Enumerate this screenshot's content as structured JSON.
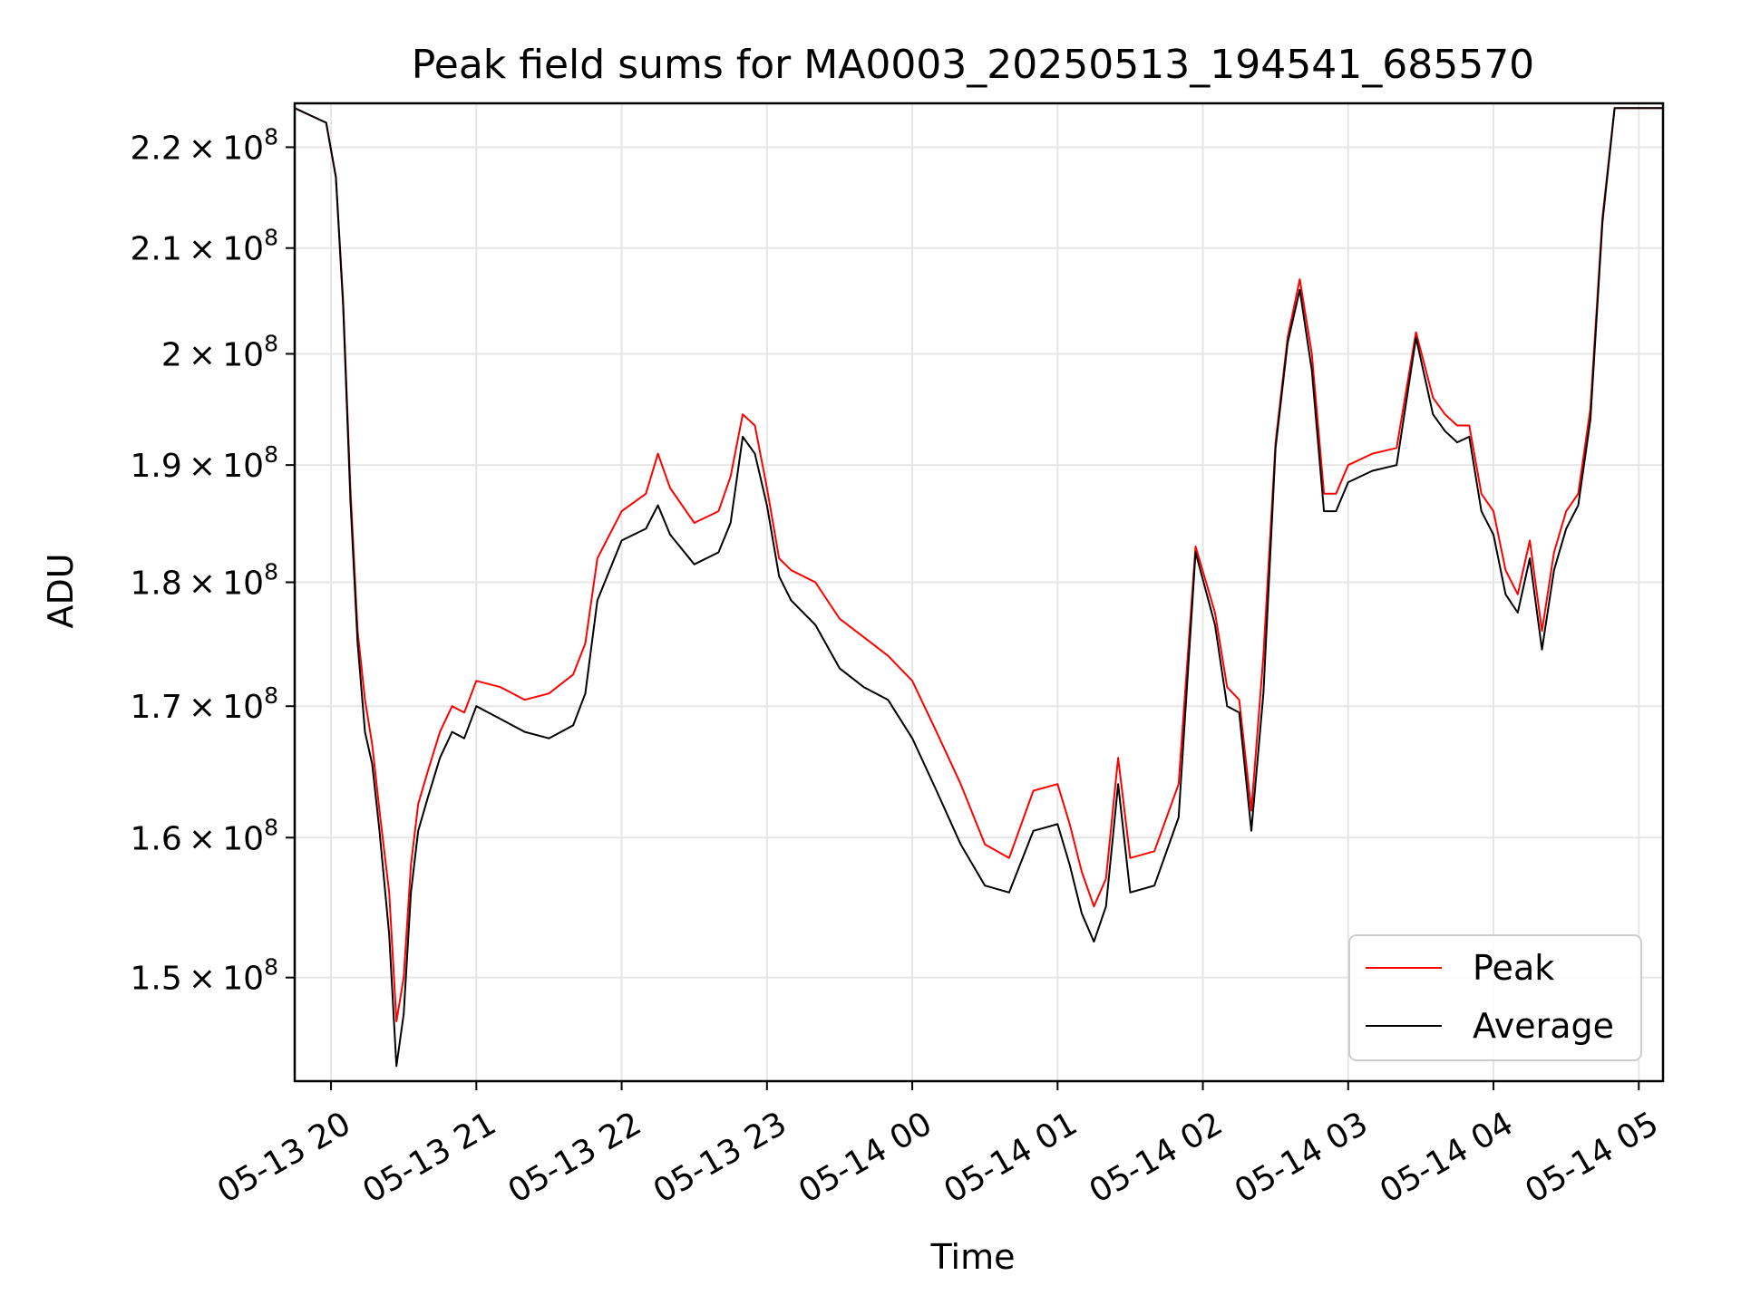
{
  "chart_data": {
    "type": "line",
    "title": "Peak field sums for MA0003_20250513_194541_685570",
    "xlabel": "Time",
    "ylabel": "ADU",
    "yscale": "log",
    "xlim": [
      "05-13 19:45",
      "05-14 05:10"
    ],
    "ylim": [
      143000000,
      224500000
    ],
    "grid": true,
    "legend_position": "bottom-right",
    "x_ticks": [
      "05-13 20",
      "05-13 21",
      "05-13 22",
      "05-13 23",
      "05-14 00",
      "05-14 01",
      "05-14 02",
      "05-14 03",
      "05-14 04",
      "05-14 05"
    ],
    "y_ticks": [
      {
        "value": 150000000,
        "mantissa": "1.5",
        "exponent": "8"
      },
      {
        "value": 160000000,
        "mantissa": "1.6",
        "exponent": "8"
      },
      {
        "value": 170000000,
        "mantissa": "1.7",
        "exponent": "8"
      },
      {
        "value": 180000000,
        "mantissa": "1.8",
        "exponent": "8"
      },
      {
        "value": 190000000,
        "mantissa": "1.9",
        "exponent": "8"
      },
      {
        "value": 200000000,
        "mantissa": "2",
        "exponent": "8"
      },
      {
        "value": 210000000,
        "mantissa": "2.1",
        "exponent": "8"
      },
      {
        "value": 220000000,
        "mantissa": "2.2",
        "exponent": "8"
      }
    ],
    "times_sign": "×",
    "base": "10",
    "series": [
      {
        "name": "Peak",
        "color": "#ff0000",
        "x": [
          "05-13 19:45",
          "05-13 19:58",
          "05-13 20:02",
          "05-13 20:05",
          "05-13 20:08",
          "05-13 20:11",
          "05-13 20:14",
          "05-13 20:17",
          "05-13 20:20",
          "05-13 20:24",
          "05-13 20:27",
          "05-13 20:30",
          "05-13 20:33",
          "05-13 20:36",
          "05-13 20:40",
          "05-13 20:45",
          "05-13 20:50",
          "05-13 20:55",
          "05-13 21:00",
          "05-13 21:10",
          "05-13 21:20",
          "05-13 21:30",
          "05-13 21:40",
          "05-13 21:45",
          "05-13 21:50",
          "05-13 22:00",
          "05-13 22:10",
          "05-13 22:15",
          "05-13 22:20",
          "05-13 22:30",
          "05-13 22:40",
          "05-13 22:45",
          "05-13 22:50",
          "05-13 22:55",
          "05-13 23:00",
          "05-13 23:05",
          "05-13 23:10",
          "05-13 23:20",
          "05-13 23:30",
          "05-13 23:40",
          "05-13 23:50",
          "05-14 00:00",
          "05-14 00:10",
          "05-14 00:20",
          "05-14 00:30",
          "05-14 00:40",
          "05-14 00:50",
          "05-14 01:00",
          "05-14 01:05",
          "05-14 01:10",
          "05-14 01:15",
          "05-14 01:20",
          "05-14 01:25",
          "05-14 01:30",
          "05-14 01:40",
          "05-14 01:50",
          "05-14 01:57",
          "05-14 02:05",
          "05-14 02:10",
          "05-14 02:15",
          "05-14 02:20",
          "05-14 02:25",
          "05-14 02:30",
          "05-14 02:35",
          "05-14 02:40",
          "05-14 02:45",
          "05-14 02:50",
          "05-14 02:55",
          "05-14 03:00",
          "05-14 03:10",
          "05-14 03:20",
          "05-14 03:28",
          "05-14 03:35",
          "05-14 03:40",
          "05-14 03:45",
          "05-14 03:50",
          "05-14 03:55",
          "05-14 04:00",
          "05-14 04:05",
          "05-14 04:10",
          "05-14 04:15",
          "05-14 04:20",
          "05-14 04:25",
          "05-14 04:30",
          "05-14 04:35",
          "05-14 04:40",
          "05-14 04:45",
          "05-14 04:50",
          "05-14 04:55",
          "05-14 05:10"
        ],
        "values": [
          224000000,
          222500000,
          217000000,
          205000000,
          188000000,
          176000000,
          170500000,
          167000000,
          162000000,
          156000000,
          147000000,
          150000000,
          158000000,
          162500000,
          165000000,
          168000000,
          170000000,
          169500000,
          172000000,
          171500000,
          170500000,
          171000000,
          172500000,
          175000000,
          182000000,
          186000000,
          187500000,
          191000000,
          188000000,
          185000000,
          186000000,
          189000000,
          194500000,
          193500000,
          188000000,
          182000000,
          181000000,
          180000000,
          177000000,
          175500000,
          174000000,
          172000000,
          168000000,
          164000000,
          159500000,
          158500000,
          163500000,
          164000000,
          161000000,
          157500000,
          155000000,
          157000000,
          166000000,
          158500000,
          159000000,
          164000000,
          183000000,
          177500000,
          171500000,
          170500000,
          162000000,
          174000000,
          192000000,
          201500000,
          207000000,
          200000000,
          187500000,
          187500000,
          190000000,
          191000000,
          191500000,
          202000000,
          196000000,
          194500000,
          193500000,
          193500000,
          187500000,
          186000000,
          181000000,
          179000000,
          183500000,
          176000000,
          182500000,
          186000000,
          187500000,
          195000000,
          213000000,
          224000000,
          224000000,
          224000000
        ]
      },
      {
        "name": "Average",
        "color": "#000000",
        "x": [
          "05-13 19:45",
          "05-13 19:58",
          "05-13 20:02",
          "05-13 20:05",
          "05-13 20:08",
          "05-13 20:11",
          "05-13 20:14",
          "05-13 20:17",
          "05-13 20:20",
          "05-13 20:24",
          "05-13 20:27",
          "05-13 20:30",
          "05-13 20:33",
          "05-13 20:36",
          "05-13 20:40",
          "05-13 20:45",
          "05-13 20:50",
          "05-13 20:55",
          "05-13 21:00",
          "05-13 21:10",
          "05-13 21:20",
          "05-13 21:30",
          "05-13 21:40",
          "05-13 21:45",
          "05-13 21:50",
          "05-13 22:00",
          "05-13 22:10",
          "05-13 22:15",
          "05-13 22:20",
          "05-13 22:30",
          "05-13 22:40",
          "05-13 22:45",
          "05-13 22:50",
          "05-13 22:55",
          "05-13 23:00",
          "05-13 23:05",
          "05-13 23:10",
          "05-13 23:20",
          "05-13 23:30",
          "05-13 23:40",
          "05-13 23:50",
          "05-14 00:00",
          "05-14 00:10",
          "05-14 00:20",
          "05-14 00:30",
          "05-14 00:40",
          "05-14 00:50",
          "05-14 01:00",
          "05-14 01:05",
          "05-14 01:10",
          "05-14 01:15",
          "05-14 01:20",
          "05-14 01:25",
          "05-14 01:30",
          "05-14 01:40",
          "05-14 01:50",
          "05-14 01:57",
          "05-14 02:05",
          "05-14 02:10",
          "05-14 02:15",
          "05-14 02:20",
          "05-14 02:25",
          "05-14 02:30",
          "05-14 02:35",
          "05-14 02:40",
          "05-14 02:45",
          "05-14 02:50",
          "05-14 02:55",
          "05-14 03:00",
          "05-14 03:10",
          "05-14 03:20",
          "05-14 03:28",
          "05-14 03:35",
          "05-14 03:40",
          "05-14 03:45",
          "05-14 03:50",
          "05-14 03:55",
          "05-14 04:00",
          "05-14 04:05",
          "05-14 04:10",
          "05-14 04:15",
          "05-14 04:20",
          "05-14 04:25",
          "05-14 04:30",
          "05-14 04:35",
          "05-14 04:40",
          "05-14 04:45",
          "05-14 04:50",
          "05-14 04:55",
          "05-14 05:10"
        ],
        "values": [
          224000000,
          222500000,
          217000000,
          204500000,
          187000000,
          175000000,
          168000000,
          165500000,
          160500000,
          153000000,
          144000000,
          147500000,
          156000000,
          160500000,
          163000000,
          166000000,
          168000000,
          167500000,
          170000000,
          169000000,
          168000000,
          167500000,
          168500000,
          171000000,
          178500000,
          183500000,
          184500000,
          186500000,
          184000000,
          181500000,
          182500000,
          185000000,
          192500000,
          191000000,
          186500000,
          180500000,
          178500000,
          176500000,
          173000000,
          171500000,
          170500000,
          167500000,
          163500000,
          159500000,
          156500000,
          156000000,
          160500000,
          161000000,
          158000000,
          154500000,
          152500000,
          155000000,
          164000000,
          156000000,
          156500000,
          161500000,
          182500000,
          176500000,
          170000000,
          169500000,
          160500000,
          171000000,
          191500000,
          201000000,
          206000000,
          198500000,
          186000000,
          186000000,
          188500000,
          189500000,
          190000000,
          201500000,
          194500000,
          193000000,
          192000000,
          192500000,
          186000000,
          184000000,
          179000000,
          177500000,
          182000000,
          174500000,
          181000000,
          184500000,
          186500000,
          194000000,
          212500000,
          224000000,
          224000000,
          224000000
        ]
      }
    ]
  }
}
